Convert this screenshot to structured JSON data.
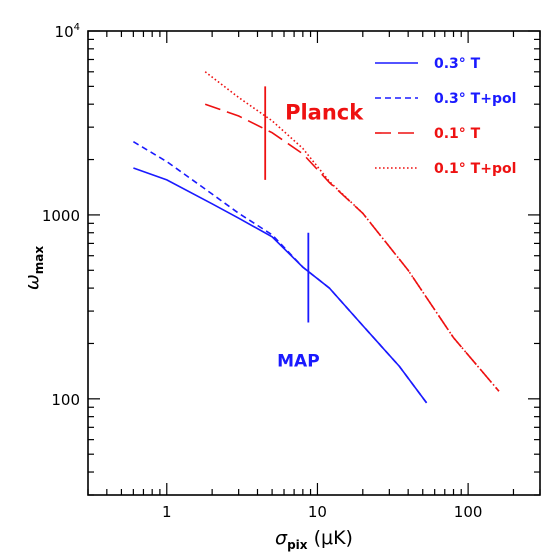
{
  "colors": {
    "blue": "#1a1aff",
    "red": "#ee1111",
    "axis": "#000000"
  },
  "chart_data": {
    "type": "line",
    "title": "",
    "xlabel": {
      "symbol": "σ",
      "sub": "pix",
      "unit": "(μK)"
    },
    "ylabel": {
      "symbol": "ω",
      "sub": "max"
    },
    "xscale": "log",
    "yscale": "log",
    "xlim": [
      0.3,
      300
    ],
    "ylim": [
      30,
      10000
    ],
    "grid": false,
    "legend_position": "top-right",
    "x_tick_labels": [
      {
        "value": 1,
        "label": "1"
      },
      {
        "value": 10,
        "label": "10"
      },
      {
        "value": 100,
        "label": "100"
      }
    ],
    "y_tick_labels": [
      {
        "value": 100,
        "label": "100"
      },
      {
        "value": 1000,
        "label": "1000"
      },
      {
        "value": 10000,
        "label": "10",
        "sup": "4"
      }
    ],
    "series": [
      {
        "name": "0.3° T",
        "color": "#1a1aff",
        "dash": "solid",
        "points": [
          [
            0.6,
            1800
          ],
          [
            1,
            1550
          ],
          [
            2,
            1150
          ],
          [
            3,
            960
          ],
          [
            5,
            760
          ],
          [
            8,
            520
          ],
          [
            12,
            400
          ],
          [
            20,
            250
          ],
          [
            35,
            150
          ],
          [
            53,
            95
          ]
        ]
      },
      {
        "name": "0.3° T+pol",
        "color": "#1a1aff",
        "dash": "dashed",
        "points": [
          [
            0.6,
            2500
          ],
          [
            1,
            1950
          ],
          [
            2,
            1300
          ],
          [
            3,
            1020
          ],
          [
            5,
            780
          ],
          [
            8,
            520
          ],
          [
            12,
            400
          ],
          [
            20,
            250
          ],
          [
            35,
            150
          ],
          [
            53,
            95
          ]
        ]
      },
      {
        "name": "0.1° T",
        "color": "#ee1111",
        "dash": "longdash",
        "points": [
          [
            1.8,
            4000
          ],
          [
            3,
            3450
          ],
          [
            5,
            2800
          ],
          [
            8,
            2150
          ],
          [
            12,
            1500
          ],
          [
            20,
            1020
          ],
          [
            40,
            500
          ],
          [
            80,
            215
          ],
          [
            160,
            110
          ]
        ]
      },
      {
        "name": "0.1° T+pol",
        "color": "#ee1111",
        "dash": "dotted",
        "points": [
          [
            1.8,
            6000
          ],
          [
            3,
            4350
          ],
          [
            5,
            3250
          ],
          [
            8,
            2300
          ],
          [
            12,
            1520
          ],
          [
            20,
            1020
          ],
          [
            40,
            500
          ],
          [
            80,
            215
          ],
          [
            160,
            110
          ]
        ]
      }
    ],
    "annotations": [
      {
        "label": "Planck",
        "color": "#ee1111",
        "x": 4.5,
        "y_range": [
          1550,
          5000
        ],
        "text_x": 6.1,
        "text_y": 3300
      },
      {
        "label": "MAP",
        "color": "#1a1aff",
        "x": 8.7,
        "y_range": [
          260,
          800
        ],
        "text_x": 5.4,
        "text_y": 150
      }
    ]
  }
}
